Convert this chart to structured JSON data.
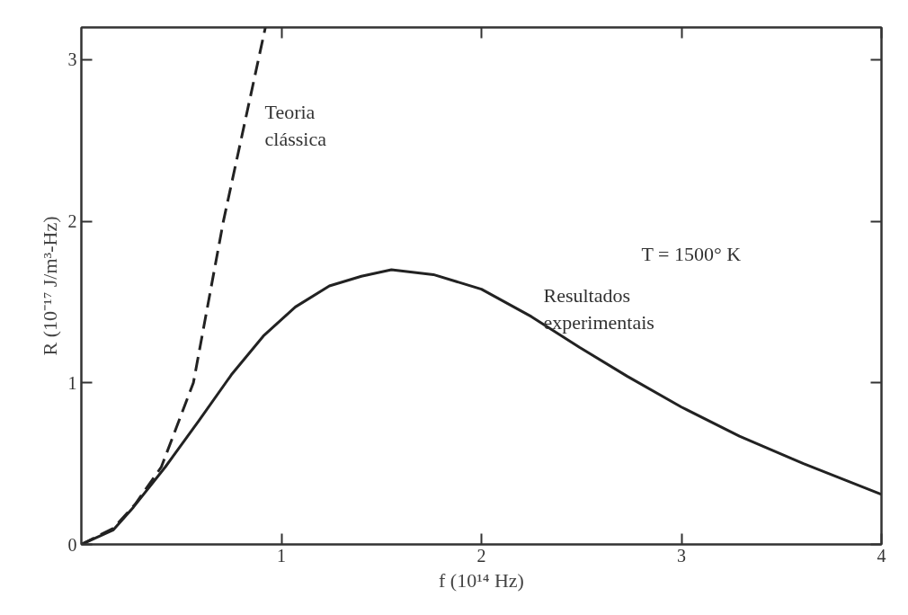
{
  "chart_data": {
    "type": "line",
    "xlabel": "f (10¹⁴ Hz)",
    "ylabel": "R (10⁻¹⁷ J/m³-Hz)",
    "xlim": [
      0,
      4
    ],
    "ylim": [
      0,
      3.2
    ],
    "xticks": [
      1,
      2,
      3,
      4
    ],
    "yticks": [
      0,
      1,
      2,
      3
    ],
    "grid": false,
    "series": [
      {
        "color": "#222222",
        "line_style": "dashed",
        "x": [
          0,
          0.16,
          0.27,
          0.4,
          0.56,
          0.71,
          0.92
        ],
        "values": [
          0,
          0.1,
          0.25,
          0.48,
          1.0,
          2.0,
          3.2
        ]
      },
      {
        "color": "#222222",
        "line_style": "solid",
        "x": [
          0,
          0.16,
          0.26,
          0.42,
          0.59,
          0.75,
          0.91,
          1.07,
          1.24,
          1.4,
          1.55,
          1.76,
          2.0,
          2.25,
          2.49,
          2.73,
          3.0,
          3.29,
          3.61,
          4.0
        ],
        "values": [
          0,
          0.09,
          0.23,
          0.48,
          0.77,
          1.05,
          1.29,
          1.47,
          1.6,
          1.66,
          1.7,
          1.67,
          1.58,
          1.41,
          1.22,
          1.04,
          0.85,
          0.67,
          0.5,
          0.31
        ]
      }
    ],
    "annotations": [
      "Teoria\nclássica",
      "Resultados\nexperimentais",
      "T = 1500° K"
    ]
  }
}
